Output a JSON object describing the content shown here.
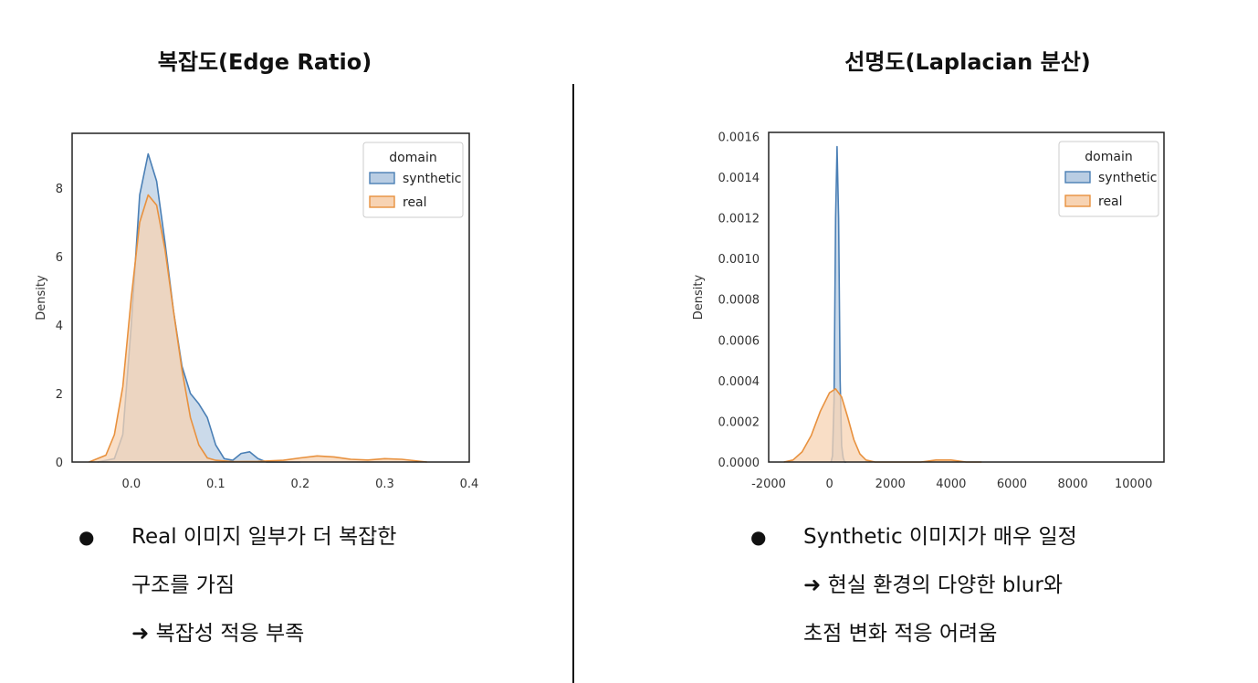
{
  "left_panel": {
    "title": "복잡도(Edge Ratio)",
    "bullets": [
      "Real 이미지 일부가 더 복잡한",
      "구조를 가짐",
      "➜ 복잡성 적응 부족"
    ]
  },
  "right_panel": {
    "title": "선명도(Laplacian 분산)",
    "bullets": [
      "Synthetic 이미지가 매우 일정",
      "➜ 현실 환경의 다양한 blur와",
      "초점 변화 적응 어려움"
    ]
  },
  "colors": {
    "synthetic": "#4a7fb5",
    "synthetic_fill": "#b9cde3",
    "real": "#e8913e",
    "real_fill": "#f7d3b3"
  },
  "chart_data": [
    {
      "type": "area",
      "title": "복잡도(Edge Ratio)",
      "xlabel": "",
      "ylabel": "Density",
      "xlim": [
        -0.07,
        0.4
      ],
      "ylim": [
        0,
        9.6
      ],
      "xticks": [
        0.0,
        0.1,
        0.2,
        0.3,
        0.4
      ],
      "xtick_labels": [
        "0.0",
        "0.1",
        "0.2",
        "0.3",
        "0.4"
      ],
      "yticks": [
        0,
        2,
        4,
        6,
        8
      ],
      "ytick_labels": [
        "0",
        "2",
        "4",
        "6",
        "8"
      ],
      "legend": {
        "title": "domain",
        "position": "top-right"
      },
      "series": [
        {
          "name": "synthetic",
          "x": [
            -0.04,
            -0.02,
            -0.01,
            0.0,
            0.01,
            0.02,
            0.03,
            0.04,
            0.05,
            0.06,
            0.07,
            0.08,
            0.09,
            0.1,
            0.11,
            0.12,
            0.13,
            0.14,
            0.15,
            0.16,
            0.18,
            0.2
          ],
          "y": [
            0.0,
            0.1,
            0.8,
            4.0,
            7.8,
            9.0,
            8.2,
            6.4,
            4.4,
            2.8,
            2.0,
            1.7,
            1.3,
            0.5,
            0.1,
            0.05,
            0.25,
            0.3,
            0.1,
            0.0,
            0.0,
            0.0
          ]
        },
        {
          "name": "real",
          "x": [
            -0.05,
            -0.03,
            -0.02,
            -0.01,
            0.0,
            0.01,
            0.02,
            0.03,
            0.04,
            0.05,
            0.06,
            0.07,
            0.08,
            0.09,
            0.1,
            0.12,
            0.15,
            0.18,
            0.2,
            0.22,
            0.24,
            0.26,
            0.28,
            0.3,
            0.32,
            0.35
          ],
          "y": [
            0.0,
            0.2,
            0.8,
            2.2,
            4.8,
            7.0,
            7.8,
            7.5,
            6.2,
            4.4,
            2.7,
            1.3,
            0.5,
            0.12,
            0.05,
            0.01,
            0.02,
            0.05,
            0.12,
            0.18,
            0.15,
            0.08,
            0.06,
            0.1,
            0.08,
            0.0
          ]
        }
      ]
    },
    {
      "type": "area",
      "title": "선명도(Laplacian 분산)",
      "xlabel": "",
      "ylabel": "Density",
      "xlim": [
        -2000,
        11000
      ],
      "ylim": [
        0,
        0.00162
      ],
      "xticks": [
        -2000,
        0,
        2000,
        4000,
        6000,
        8000,
        10000
      ],
      "xtick_labels": [
        "-2000",
        "0",
        "2000",
        "4000",
        "6000",
        "8000",
        "10000"
      ],
      "yticks": [
        0.0,
        0.0002,
        0.0004,
        0.0006,
        0.0008,
        0.001,
        0.0012,
        0.0014,
        0.0016
      ],
      "ytick_labels": [
        "0.0000",
        "0.0002",
        "0.0004",
        "0.0006",
        "0.0008",
        "0.0010",
        "0.0012",
        "0.0014",
        "0.0016"
      ],
      "legend": {
        "title": "domain",
        "position": "top-right"
      },
      "series": [
        {
          "name": "synthetic",
          "x": [
            50,
            100,
            150,
            200,
            250,
            300,
            350,
            400,
            450,
            500,
            550
          ],
          "y": [
            0.0,
            3e-05,
            0.0003,
            0.0012,
            0.00155,
            0.0012,
            0.0004,
            8e-05,
            2e-05,
            0.0,
            0.0
          ]
        },
        {
          "name": "real",
          "x": [
            -1500,
            -1200,
            -900,
            -600,
            -300,
            0,
            200,
            400,
            600,
            800,
            1000,
            1200,
            1500,
            2000,
            3000,
            3500,
            4000,
            4500,
            5000
          ],
          "y": [
            0.0,
            1e-05,
            5e-05,
            0.00013,
            0.00025,
            0.00034,
            0.00036,
            0.00032,
            0.00022,
            0.00011,
            4e-05,
            1e-05,
            0.0,
            0.0,
            0.0,
            1e-05,
            1e-05,
            0.0,
            0.0
          ]
        }
      ]
    }
  ]
}
